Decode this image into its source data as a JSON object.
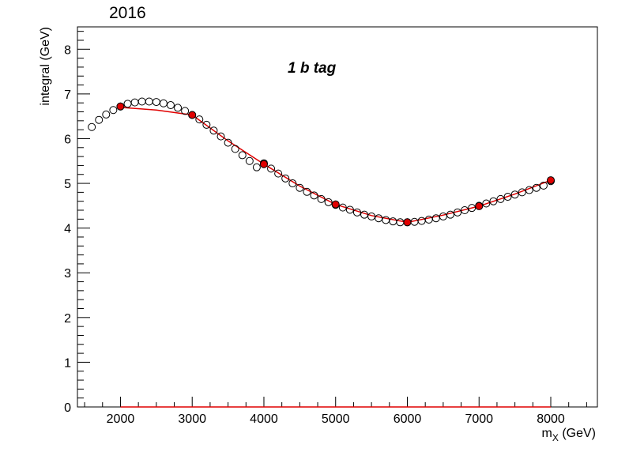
{
  "chart_data": {
    "type": "scatter",
    "title": "2016",
    "annotation": "1 b tag",
    "xlabel_main": "m",
    "xlabel_sub": "X",
    "xlabel_unit": " (GeV)",
    "ylabel": "integral (GeV)",
    "xlim": [
      1400,
      8650
    ],
    "ylim": [
      0,
      8.5
    ],
    "x_ticks": [
      2000,
      3000,
      4000,
      5000,
      6000,
      7000,
      8000
    ],
    "y_ticks": [
      0,
      1,
      2,
      3,
      4,
      5,
      6,
      7,
      8
    ],
    "series": [
      {
        "style": "open-circle",
        "color": "#000000",
        "points": [
          [
            1600,
            6.26
          ],
          [
            1700,
            6.42
          ],
          [
            1800,
            6.54
          ],
          [
            1900,
            6.64
          ],
          [
            2000,
            6.72
          ],
          [
            2100,
            6.78
          ],
          [
            2200,
            6.81
          ],
          [
            2300,
            6.83
          ],
          [
            2400,
            6.83
          ],
          [
            2500,
            6.82
          ],
          [
            2600,
            6.79
          ],
          [
            2700,
            6.75
          ],
          [
            2800,
            6.69
          ],
          [
            2900,
            6.62
          ],
          [
            3000,
            6.53
          ],
          [
            3100,
            6.43
          ],
          [
            3200,
            6.31
          ],
          [
            3300,
            6.18
          ],
          [
            3400,
            6.05
          ],
          [
            3500,
            5.91
          ],
          [
            3600,
            5.77
          ],
          [
            3700,
            5.63
          ],
          [
            3800,
            5.5
          ],
          [
            3900,
            5.36
          ],
          [
            4000,
            5.45
          ],
          [
            4100,
            5.33
          ],
          [
            4200,
            5.22
          ],
          [
            4300,
            5.11
          ],
          [
            4400,
            5.0
          ],
          [
            4500,
            4.9
          ],
          [
            4600,
            4.81
          ],
          [
            4700,
            4.73
          ],
          [
            4800,
            4.65
          ],
          [
            4900,
            4.58
          ],
          [
            5000,
            4.52
          ],
          [
            5100,
            4.46
          ],
          [
            5200,
            4.41
          ],
          [
            5300,
            4.35
          ],
          [
            5400,
            4.3
          ],
          [
            5500,
            4.26
          ],
          [
            5600,
            4.22
          ],
          [
            5700,
            4.18
          ],
          [
            5800,
            4.15
          ],
          [
            5900,
            4.13
          ],
          [
            6000,
            4.13
          ],
          [
            6100,
            4.14
          ],
          [
            6200,
            4.16
          ],
          [
            6300,
            4.19
          ],
          [
            6400,
            4.22
          ],
          [
            6500,
            4.26
          ],
          [
            6600,
            4.3
          ],
          [
            6700,
            4.35
          ],
          [
            6800,
            4.4
          ],
          [
            6900,
            4.45
          ],
          [
            7000,
            4.5
          ],
          [
            7100,
            4.55
          ],
          [
            7200,
            4.6
          ],
          [
            7300,
            4.65
          ],
          [
            7400,
            4.7
          ],
          [
            7500,
            4.75
          ],
          [
            7600,
            4.8
          ],
          [
            7700,
            4.85
          ],
          [
            7800,
            4.9
          ],
          [
            7900,
            4.95
          ],
          [
            8000,
            5.05
          ]
        ]
      },
      {
        "style": "filled-circle",
        "color": "#e00000",
        "points": [
          [
            2000,
            6.72
          ],
          [
            3000,
            6.53
          ],
          [
            4000,
            5.43
          ],
          [
            5000,
            4.53
          ],
          [
            6000,
            4.13
          ],
          [
            7000,
            4.49
          ],
          [
            8000,
            5.07
          ]
        ]
      },
      {
        "style": "line",
        "color": "#e00000",
        "points": [
          [
            2000,
            6.7
          ],
          [
            2500,
            6.64
          ],
          [
            3000,
            6.53
          ],
          [
            3500,
            5.95
          ],
          [
            4000,
            5.43
          ],
          [
            4500,
            4.94
          ],
          [
            5000,
            4.53
          ],
          [
            5500,
            4.28
          ],
          [
            6000,
            4.13
          ],
          [
            6500,
            4.29
          ],
          [
            7000,
            4.49
          ],
          [
            7500,
            4.76
          ],
          [
            8000,
            5.07
          ]
        ]
      },
      {
        "style": "line",
        "color": "#e00000",
        "points": [
          [
            2000,
            0
          ],
          [
            8000,
            0
          ]
        ]
      }
    ]
  }
}
